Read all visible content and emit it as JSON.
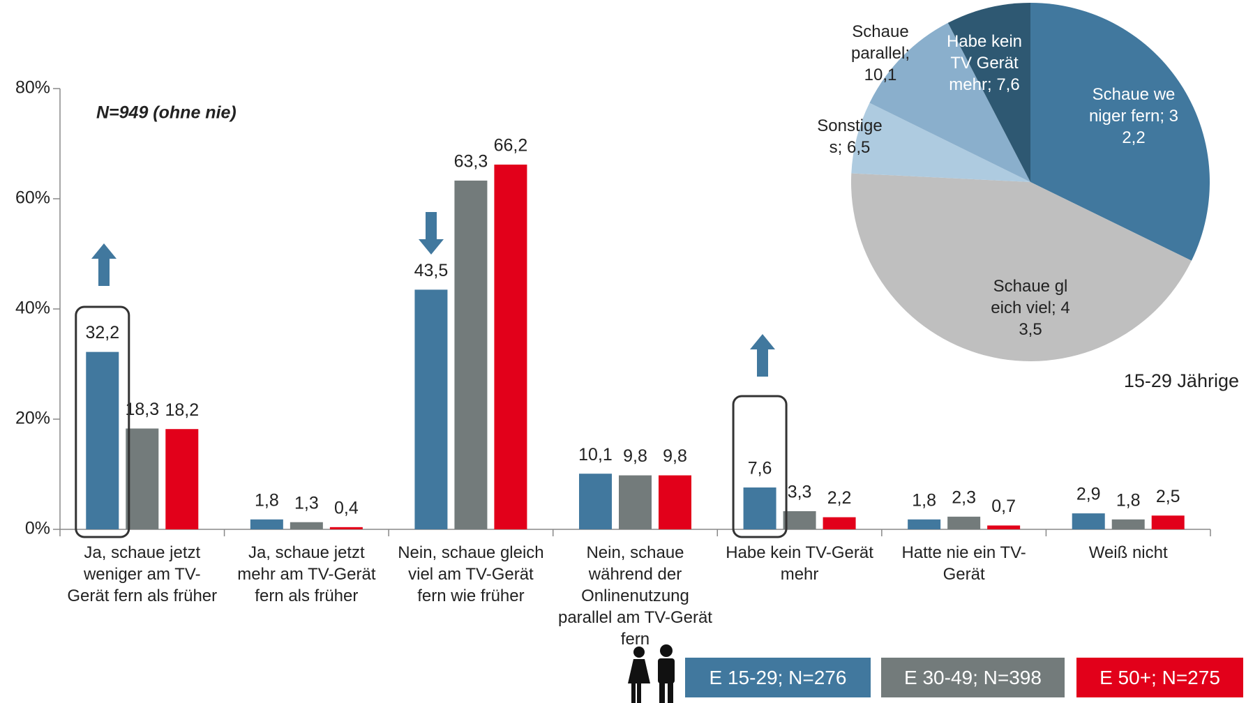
{
  "chart_data": [
    {
      "type": "bar",
      "annotation": "N=949 (ohne nie)",
      "categories": [
        "Ja, schaue jetzt weniger am TV-Gerät fern als früher",
        "Ja, schaue jetzt mehr am TV-Gerät fern als früher",
        "Nein, schaue gleich viel am TV-Gerät fern wie früher",
        "Nein, schaue während der Onlinenutzung parallel am TV-Gerät fern",
        "Habe kein TV-Gerät mehr",
        "Hatte nie ein TV-Gerät",
        "Weiß nicht"
      ],
      "series": [
        {
          "name": "E 15-29; N=276",
          "color": "#41789e",
          "values": [
            32.2,
            1.8,
            43.5,
            10.1,
            7.6,
            1.8,
            2.9
          ],
          "value_labels": [
            "32,2",
            "1,8",
            "43,5",
            "10,1",
            "7,6",
            "1,8",
            "2,9"
          ]
        },
        {
          "name": "E 30-49; N=398",
          "color": "#737b7b",
          "values": [
            18.3,
            1.3,
            63.3,
            9.8,
            3.3,
            2.3,
            1.8
          ],
          "value_labels": [
            "18,3",
            "1,3",
            "63,3",
            "9,8",
            "3,3",
            "2,3",
            "1,8"
          ]
        },
        {
          "name": "E 50+; N=275",
          "color": "#e2001a",
          "values": [
            18.2,
            0.4,
            66.2,
            9.8,
            2.2,
            0.7,
            2.5
          ],
          "value_labels": [
            "18,2",
            "0,4",
            "66,2",
            "9,8",
            "2,2",
            "0,7",
            "2,5"
          ]
        }
      ],
      "ylim": [
        0,
        80
      ],
      "yticks": [
        {
          "value": 0,
          "label": "0%"
        },
        {
          "value": 20,
          "label": "20%"
        },
        {
          "value": 40,
          "label": "40%"
        },
        {
          "value": 60,
          "label": "60%"
        },
        {
          "value": 80,
          "label": "80%"
        }
      ]
    },
    {
      "type": "pie",
      "subtitle": "15-29 Jährige",
      "labels": [
        "Schaue weniger fern; 32,2",
        "Schaue gleich viel; 43,5",
        "Sonstiges; 6,5",
        "Schaue parallel; 10,1",
        "Habe kein TV Gerät mehr; 7,6"
      ],
      "values": [
        32.2,
        43.5,
        6.5,
        10.1,
        7.6
      ],
      "colors": [
        "#41789e",
        "#bfbfbf",
        "#aecbe0",
        "#8aafcc",
        "#2e5872"
      ]
    }
  ]
}
